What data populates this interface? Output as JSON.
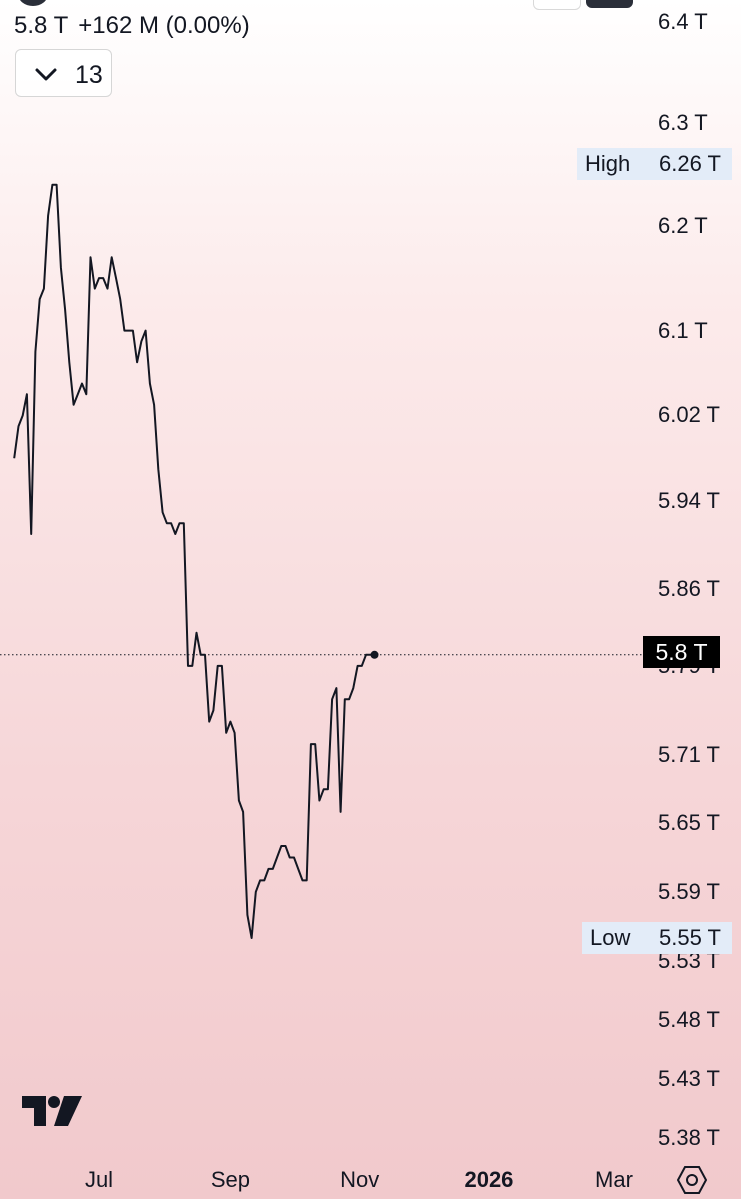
{
  "header": {
    "last_value": "5.8 T",
    "change": "+162 M (0.00%)"
  },
  "collapse_button": {
    "count": "13"
  },
  "icons": {
    "collapse": "chevron-down-icon",
    "logo": "tradingview-logo-icon",
    "settings": "hexagon-settings-icon"
  },
  "colors": {
    "line": "#131722",
    "price_tag_bg": "#000000",
    "hl_tag_bg": "#e3ecf8",
    "background_top": "#ffffff",
    "background_bottom": "#f1c9cc"
  },
  "chart_data": {
    "type": "line",
    "scale": "log",
    "grid": false,
    "y_ticks": [
      {
        "value": 6.4,
        "label": "6.4 T"
      },
      {
        "value": 6.3,
        "label": "6.3 T"
      },
      {
        "value": 6.2,
        "label": "6.2 T"
      },
      {
        "value": 6.1,
        "label": "6.1 T"
      },
      {
        "value": 6.02,
        "label": "6.02 T"
      },
      {
        "value": 5.94,
        "label": "5.94 T"
      },
      {
        "value": 5.86,
        "label": "5.86 T"
      },
      {
        "value": 5.79,
        "label": "5.79 T"
      },
      {
        "value": 5.71,
        "label": "5.71 T"
      },
      {
        "value": 5.65,
        "label": "5.65 T"
      },
      {
        "value": 5.59,
        "label": "5.59 T"
      },
      {
        "value": 5.53,
        "label": "5.53 T"
      },
      {
        "value": 5.48,
        "label": "5.48 T"
      },
      {
        "value": 5.43,
        "label": "5.43 T"
      },
      {
        "value": 5.38,
        "label": "5.38 T"
      }
    ],
    "x_ticks": [
      {
        "date": "2025-07-01",
        "label": "Jul",
        "bold": false
      },
      {
        "date": "2025-09-01",
        "label": "Sep",
        "bold": false
      },
      {
        "date": "2025-11-01",
        "label": "Nov",
        "bold": false
      },
      {
        "date": "2026-01-01",
        "label": "2026",
        "bold": true
      },
      {
        "date": "2026-03-01",
        "label": "Mar",
        "bold": false
      }
    ],
    "high": {
      "label": "High",
      "value": 6.26,
      "value_label": "6.26 T"
    },
    "low": {
      "label": "Low",
      "value": 5.55,
      "value_label": "5.55 T"
    },
    "last": {
      "value": 5.8,
      "label": "5.8 T"
    },
    "series": [
      {
        "points": [
          [
            "2025-05-22",
            5.98
          ],
          [
            "2025-05-24",
            6.01
          ],
          [
            "2025-05-26",
            6.02
          ],
          [
            "2025-05-28",
            6.04
          ],
          [
            "2025-05-30",
            5.91
          ],
          [
            "2025-06-01",
            6.08
          ],
          [
            "2025-06-03",
            6.13
          ],
          [
            "2025-06-05",
            6.14
          ],
          [
            "2025-06-07",
            6.21
          ],
          [
            "2025-06-09",
            6.24
          ],
          [
            "2025-06-11",
            6.24
          ],
          [
            "2025-06-13",
            6.16
          ],
          [
            "2025-06-15",
            6.12
          ],
          [
            "2025-06-17",
            6.07
          ],
          [
            "2025-06-19",
            6.03
          ],
          [
            "2025-06-21",
            6.04
          ],
          [
            "2025-06-23",
            6.05
          ],
          [
            "2025-06-25",
            6.04
          ],
          [
            "2025-06-27",
            6.17
          ],
          [
            "2025-06-29",
            6.14
          ],
          [
            "2025-07-01",
            6.15
          ],
          [
            "2025-07-03",
            6.15
          ],
          [
            "2025-07-05",
            6.14
          ],
          [
            "2025-07-07",
            6.17
          ],
          [
            "2025-07-09",
            6.15
          ],
          [
            "2025-07-11",
            6.13
          ],
          [
            "2025-07-13",
            6.1
          ],
          [
            "2025-07-15",
            6.1
          ],
          [
            "2025-07-17",
            6.1
          ],
          [
            "2025-07-19",
            6.07
          ],
          [
            "2025-07-21",
            6.09
          ],
          [
            "2025-07-23",
            6.1
          ],
          [
            "2025-07-25",
            6.05
          ],
          [
            "2025-07-27",
            6.03
          ],
          [
            "2025-07-29",
            5.97
          ],
          [
            "2025-07-31",
            5.93
          ],
          [
            "2025-08-02",
            5.92
          ],
          [
            "2025-08-04",
            5.92
          ],
          [
            "2025-08-06",
            5.91
          ],
          [
            "2025-08-08",
            5.92
          ],
          [
            "2025-08-10",
            5.92
          ],
          [
            "2025-08-12",
            5.79
          ],
          [
            "2025-08-14",
            5.79
          ],
          [
            "2025-08-16",
            5.82
          ],
          [
            "2025-08-18",
            5.8
          ],
          [
            "2025-08-20",
            5.8
          ],
          [
            "2025-08-22",
            5.74
          ],
          [
            "2025-08-24",
            5.75
          ],
          [
            "2025-08-26",
            5.79
          ],
          [
            "2025-08-28",
            5.79
          ],
          [
            "2025-08-30",
            5.73
          ],
          [
            "2025-09-01",
            5.74
          ],
          [
            "2025-09-03",
            5.73
          ],
          [
            "2025-09-05",
            5.67
          ],
          [
            "2025-09-07",
            5.66
          ],
          [
            "2025-09-09",
            5.57
          ],
          [
            "2025-09-11",
            5.55
          ],
          [
            "2025-09-13",
            5.59
          ],
          [
            "2025-09-15",
            5.6
          ],
          [
            "2025-09-17",
            5.6
          ],
          [
            "2025-09-19",
            5.61
          ],
          [
            "2025-09-21",
            5.61
          ],
          [
            "2025-09-23",
            5.62
          ],
          [
            "2025-09-25",
            5.63
          ],
          [
            "2025-09-27",
            5.63
          ],
          [
            "2025-09-29",
            5.62
          ],
          [
            "2025-10-01",
            5.62
          ],
          [
            "2025-10-03",
            5.61
          ],
          [
            "2025-10-05",
            5.6
          ],
          [
            "2025-10-07",
            5.6
          ],
          [
            "2025-10-09",
            5.72
          ],
          [
            "2025-10-11",
            5.72
          ],
          [
            "2025-10-13",
            5.67
          ],
          [
            "2025-10-15",
            5.68
          ],
          [
            "2025-10-17",
            5.68
          ],
          [
            "2025-10-19",
            5.76
          ],
          [
            "2025-10-21",
            5.77
          ],
          [
            "2025-10-23",
            5.66
          ],
          [
            "2025-10-25",
            5.76
          ],
          [
            "2025-10-27",
            5.76
          ],
          [
            "2025-10-29",
            5.77
          ],
          [
            "2025-10-31",
            5.79
          ],
          [
            "2025-11-02",
            5.79
          ],
          [
            "2025-11-04",
            5.8
          ],
          [
            "2025-11-06",
            5.8
          ],
          [
            "2025-11-08",
            5.8
          ]
        ]
      }
    ]
  }
}
